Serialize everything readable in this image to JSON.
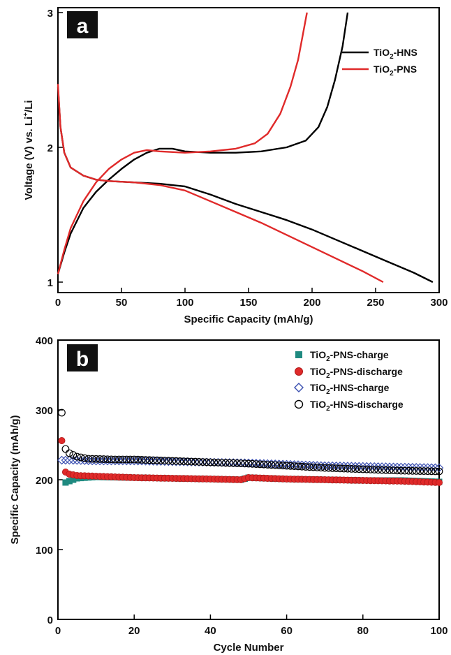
{
  "chart_data": [
    {
      "panel_label": "a",
      "type": "line",
      "xlabel": "Specific Capacity (mAh/g)",
      "ylabel_main": "Voltage (V) vs. Li",
      "ylabel_sup": "+",
      "ylabel_tail": "/Li",
      "xlim": [
        0,
        300
      ],
      "ylim": [
        0.95,
        3.0
      ],
      "xticks": [
        0,
        50,
        100,
        150,
        200,
        250,
        300
      ],
      "yticks": [
        1,
        2,
        3
      ],
      "legend_position": "top-right",
      "series": [
        {
          "name": "TiO2-HNS",
          "name_parts": [
            "TiO",
            "2",
            "-HNS"
          ],
          "color": "#000000",
          "discharge": [
            [
              0,
              2.45
            ],
            [
              2,
              2.15
            ],
            [
              5,
              1.96
            ],
            [
              10,
              1.85
            ],
            [
              20,
              1.79
            ],
            [
              30,
              1.76
            ],
            [
              40,
              1.75
            ],
            [
              60,
              1.74
            ],
            [
              80,
              1.73
            ],
            [
              100,
              1.71
            ],
            [
              120,
              1.65
            ],
            [
              140,
              1.58
            ],
            [
              160,
              1.52
            ],
            [
              180,
              1.46
            ],
            [
              200,
              1.39
            ],
            [
              220,
              1.31
            ],
            [
              240,
              1.23
            ],
            [
              260,
              1.15
            ],
            [
              280,
              1.07
            ],
            [
              295,
              1.0
            ]
          ],
          "charge": [
            [
              0,
              1.06
            ],
            [
              5,
              1.22
            ],
            [
              10,
              1.36
            ],
            [
              20,
              1.55
            ],
            [
              30,
              1.67
            ],
            [
              40,
              1.76
            ],
            [
              50,
              1.84
            ],
            [
              60,
              1.91
            ],
            [
              70,
              1.96
            ],
            [
              80,
              1.99
            ],
            [
              90,
              1.99
            ],
            [
              100,
              1.97
            ],
            [
              120,
              1.96
            ],
            [
              140,
              1.96
            ],
            [
              160,
              1.97
            ],
            [
              180,
              2.0
            ],
            [
              195,
              2.05
            ],
            [
              205,
              2.15
            ],
            [
              212,
              2.3
            ],
            [
              218,
              2.5
            ],
            [
              224,
              2.75
            ],
            [
              228,
              3.0
            ]
          ]
        },
        {
          "name": "TiO2-PNS",
          "name_parts": [
            "TiO",
            "2",
            "-PNS"
          ],
          "color": "#e02a2a",
          "discharge": [
            [
              0,
              2.47
            ],
            [
              2,
              2.15
            ],
            [
              5,
              1.96
            ],
            [
              10,
              1.85
            ],
            [
              20,
              1.79
            ],
            [
              30,
              1.76
            ],
            [
              40,
              1.75
            ],
            [
              60,
              1.74
            ],
            [
              80,
              1.72
            ],
            [
              100,
              1.68
            ],
            [
              120,
              1.6
            ],
            [
              140,
              1.52
            ],
            [
              160,
              1.44
            ],
            [
              180,
              1.35
            ],
            [
              200,
              1.26
            ],
            [
              220,
              1.17
            ],
            [
              240,
              1.08
            ],
            [
              256,
              1.0
            ]
          ],
          "charge": [
            [
              0,
              1.06
            ],
            [
              5,
              1.24
            ],
            [
              10,
              1.4
            ],
            [
              20,
              1.6
            ],
            [
              30,
              1.74
            ],
            [
              40,
              1.84
            ],
            [
              50,
              1.91
            ],
            [
              60,
              1.96
            ],
            [
              70,
              1.98
            ],
            [
              80,
              1.97
            ],
            [
              100,
              1.96
            ],
            [
              120,
              1.97
            ],
            [
              140,
              1.99
            ],
            [
              155,
              2.03
            ],
            [
              165,
              2.1
            ],
            [
              175,
              2.25
            ],
            [
              183,
              2.45
            ],
            [
              189,
              2.65
            ],
            [
              193,
              2.85
            ],
            [
              196,
              3.0
            ]
          ]
        }
      ]
    },
    {
      "panel_label": "b",
      "type": "scatter",
      "xlabel": "Cycle Number",
      "ylabel": "Specific Capacity (mAh/g)",
      "xlim": [
        0,
        100
      ],
      "ylim": [
        0,
        400
      ],
      "xticks": [
        0,
        20,
        40,
        60,
        80,
        100
      ],
      "yticks": [
        0,
        100,
        200,
        300,
        400
      ],
      "legend_position": "top-right",
      "series": [
        {
          "name": "TiO2-PNS-charge",
          "name_parts": [
            "TiO",
            "2",
            "-PNS-charge"
          ],
          "marker": "square",
          "color": "#1f8a80",
          "start": 2,
          "end": 100,
          "anchors": [
            [
              2,
              196
            ],
            [
              5,
              202
            ],
            [
              10,
              204
            ],
            [
              20,
              203
            ],
            [
              30,
              202
            ],
            [
              40,
              201
            ],
            [
              48,
              200
            ],
            [
              50,
              203
            ],
            [
              60,
              201
            ],
            [
              70,
              200
            ],
            [
              80,
              199
            ],
            [
              90,
              199
            ],
            [
              100,
              197
            ]
          ]
        },
        {
          "name": "TiO2-PNS-discharge",
          "name_parts": [
            "TiO",
            "2",
            "-PNS-discharge"
          ],
          "marker": "red-circle",
          "color": "#e02a2a",
          "start": 1,
          "end": 100,
          "anchors": [
            [
              1,
              256
            ],
            [
              2,
              211
            ],
            [
              3,
              208
            ],
            [
              5,
              206
            ],
            [
              10,
              205
            ],
            [
              20,
              203
            ],
            [
              30,
              202
            ],
            [
              40,
              201
            ],
            [
              48,
              200
            ],
            [
              50,
              203
            ],
            [
              60,
              201
            ],
            [
              70,
              200
            ],
            [
              80,
              199
            ],
            [
              90,
              198
            ],
            [
              100,
              196
            ]
          ]
        },
        {
          "name": "TiO2-HNS-charge",
          "name_parts": [
            "TiO",
            "2",
            "-HNS-charge"
          ],
          "marker": "diamond",
          "color": "#3a4fb0",
          "start": 1,
          "end": 100,
          "anchors": [
            [
              1,
              228
            ],
            [
              3,
              228
            ],
            [
              10,
              227
            ],
            [
              20,
              227
            ],
            [
              30,
              226
            ],
            [
              40,
              225
            ],
            [
              50,
              224
            ],
            [
              60,
              222
            ],
            [
              70,
              220
            ],
            [
              80,
              219
            ],
            [
              90,
              218
            ],
            [
              100,
              217
            ]
          ]
        },
        {
          "name": "TiO2-HNS-discharge",
          "name_parts": [
            "TiO",
            "2",
            "-HNS-discharge"
          ],
          "marker": "open-circle",
          "color": "#000000",
          "start": 1,
          "end": 100,
          "anchors": [
            [
              1,
              296
            ],
            [
              2,
              244
            ],
            [
              3,
              238
            ],
            [
              5,
              233
            ],
            [
              8,
              230
            ],
            [
              15,
              229
            ],
            [
              20,
              229
            ],
            [
              30,
              227
            ],
            [
              40,
              225
            ],
            [
              50,
              223
            ],
            [
              60,
              220
            ],
            [
              70,
              217
            ],
            [
              80,
              215
            ],
            [
              90,
              213
            ],
            [
              100,
              212
            ]
          ]
        }
      ]
    }
  ]
}
